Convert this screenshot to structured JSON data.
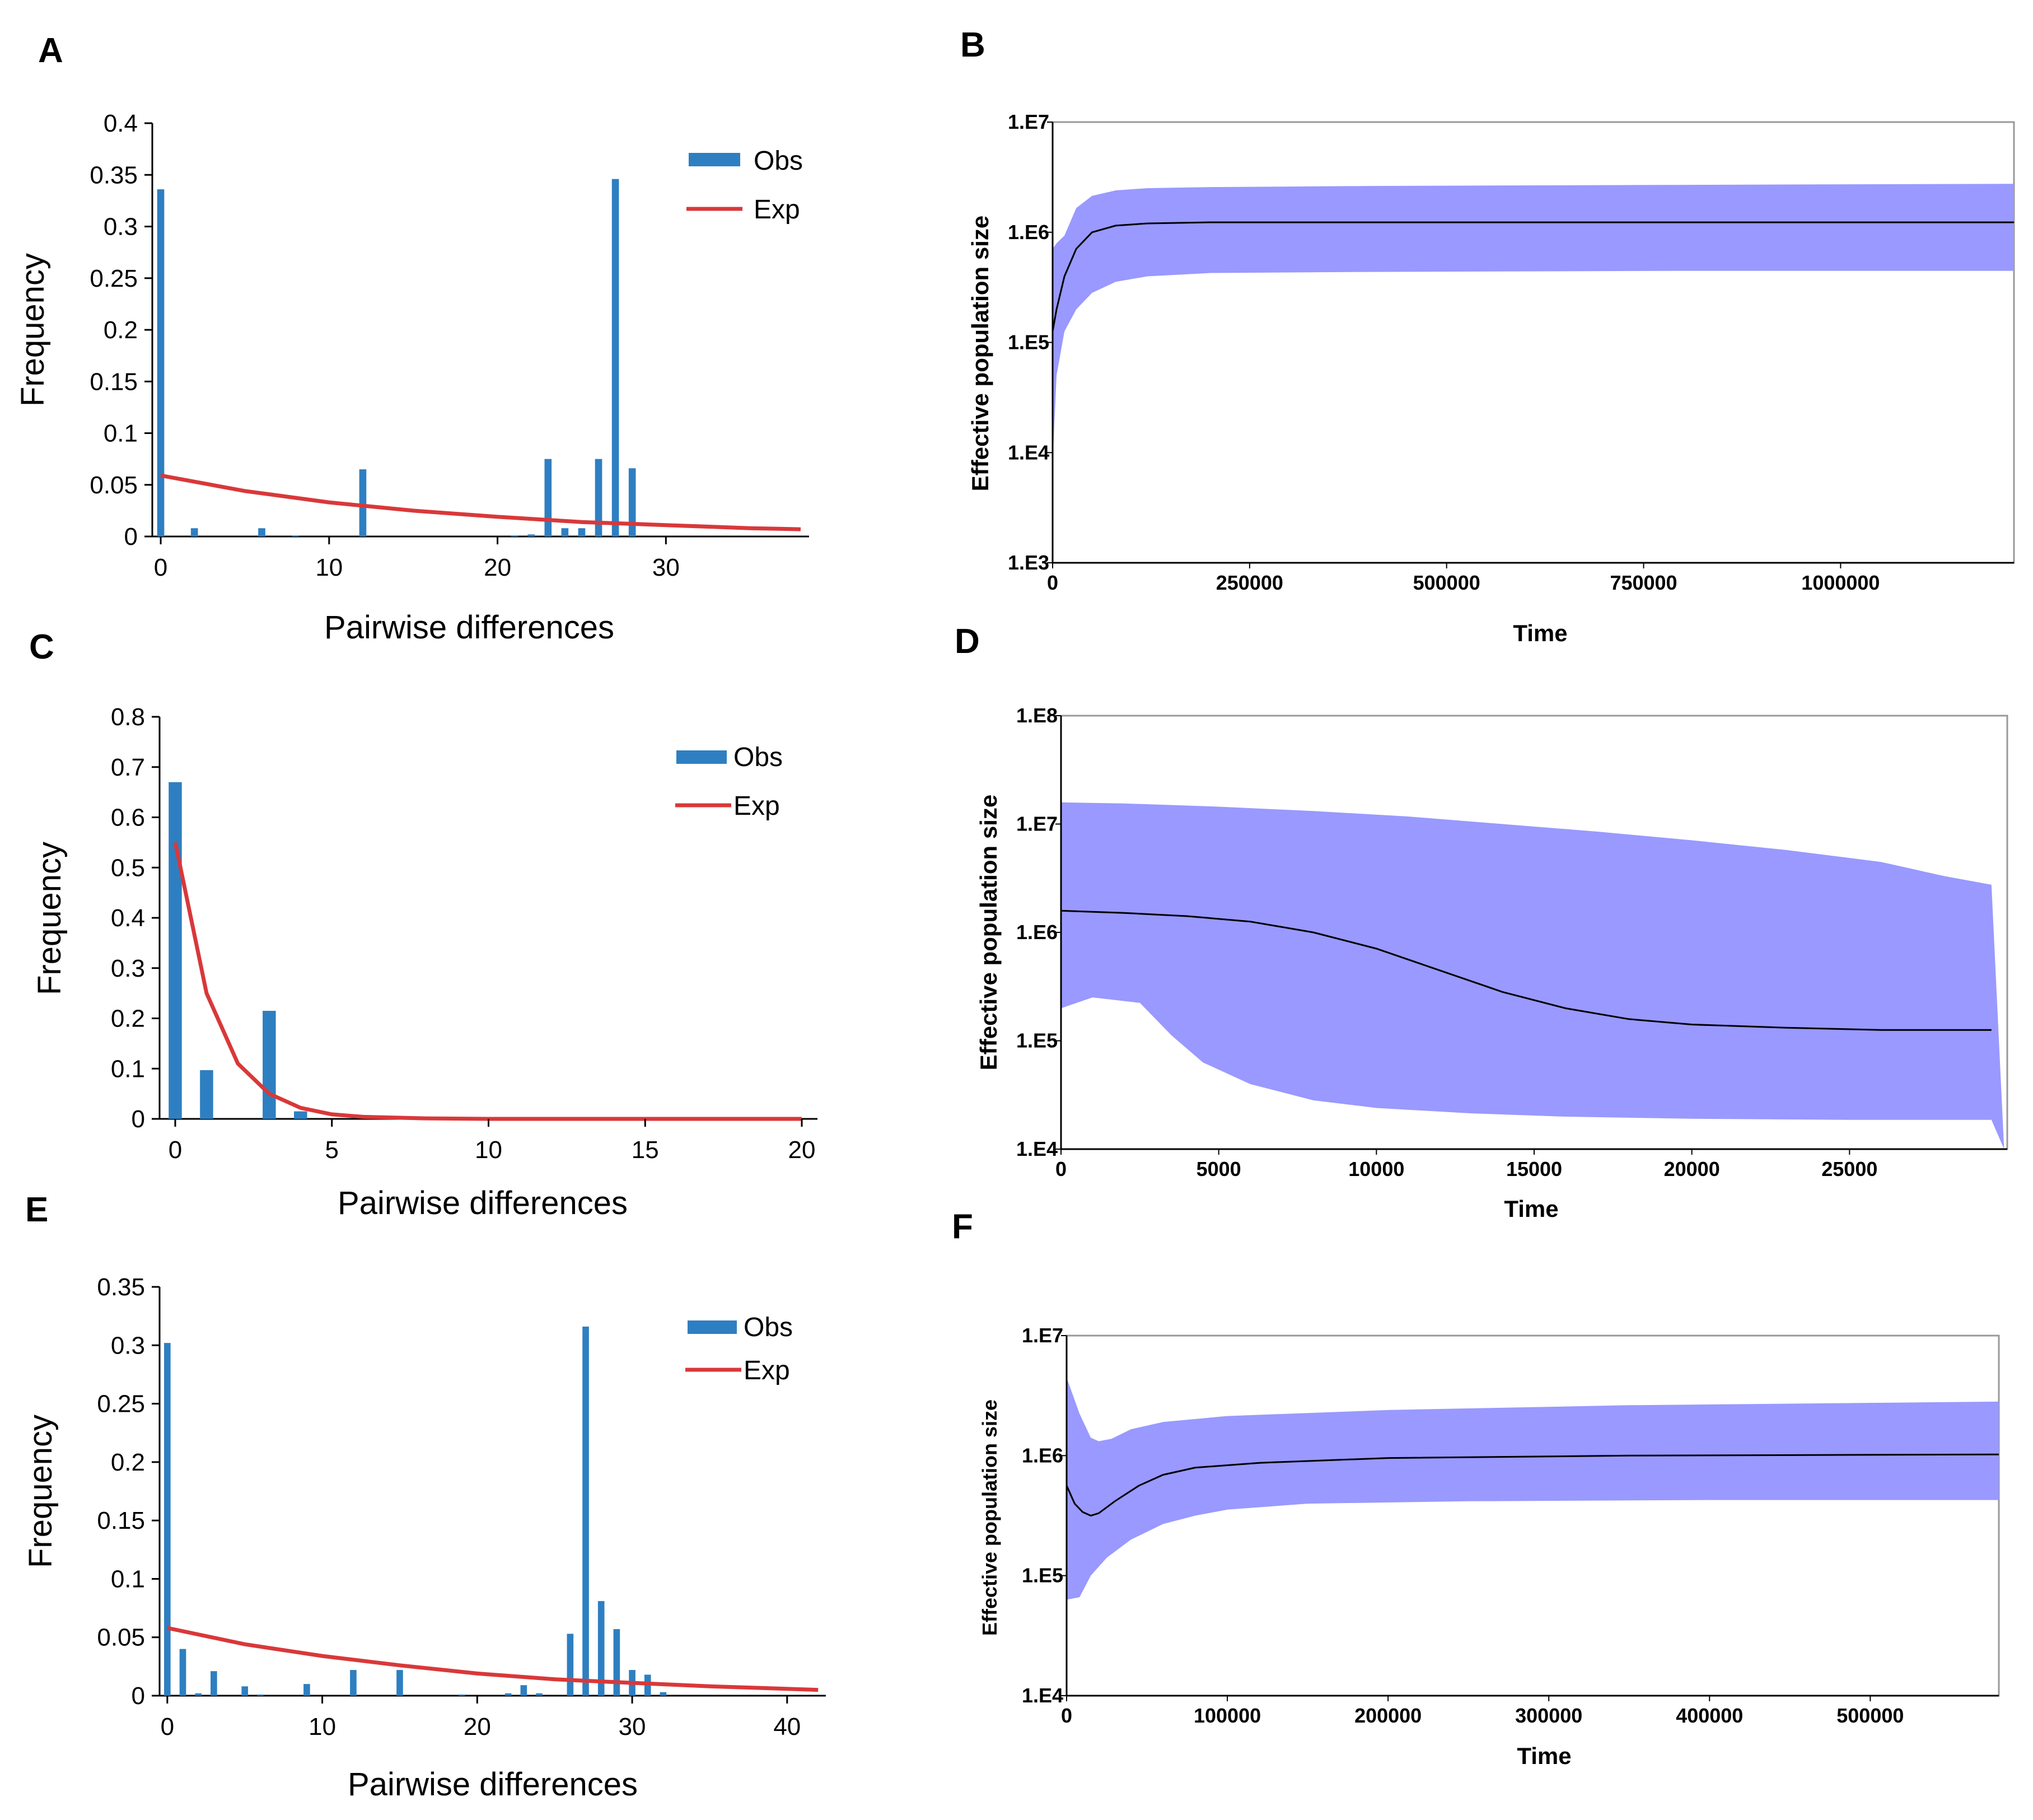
{
  "figure": {
    "panel_letters": [
      "A",
      "B",
      "C",
      "D",
      "E",
      "F"
    ],
    "colors": {
      "obs_bar": "#2e7fc1",
      "exp_line": "#d9383a",
      "band": "#9999ff",
      "median_line": "#000000",
      "axis": "#000000",
      "frame": "#999999"
    }
  },
  "chart_data": [
    {
      "panel": "A",
      "type": "bar",
      "title": "",
      "xlabel": "Pairwise differences",
      "ylabel": "Frequency",
      "xlim": [
        -0.5,
        38.5
      ],
      "ylim": [
        0,
        0.4
      ],
      "xticks": [
        "0",
        "10",
        "20",
        "30"
      ],
      "xtick_values": [
        0,
        10,
        20,
        30
      ],
      "yticks": [
        "0",
        "0.05",
        "0.1",
        "0.15",
        "0.2",
        "0.25",
        "0.3",
        "0.35",
        "0.4"
      ],
      "ytick_values": [
        0,
        0.05,
        0.1,
        0.15,
        0.2,
        0.25,
        0.3,
        0.35,
        0.4
      ],
      "legend": [
        "Obs",
        "Exp"
      ],
      "legend_position": "top-right",
      "series": [
        {
          "name": "Obs",
          "type": "bar",
          "x": [
            0,
            2,
            6,
            8,
            12,
            21,
            22,
            23,
            24,
            25,
            26,
            27,
            28
          ],
          "values": [
            0.336,
            0.008,
            0.008,
            0.001,
            0.065,
            0.001,
            0.002,
            0.075,
            0.008,
            0.008,
            0.075,
            0.346,
            0.066
          ]
        },
        {
          "name": "Exp",
          "type": "line",
          "x": [
            0,
            5,
            10,
            15,
            20,
            25,
            30,
            35,
            38
          ],
          "values": [
            0.059,
            0.044,
            0.033,
            0.025,
            0.019,
            0.014,
            0.011,
            0.008,
            0.007
          ]
        }
      ]
    },
    {
      "panel": "B",
      "type": "area",
      "title": "",
      "xlabel": "Time",
      "ylabel": "Effective population size",
      "xlim": [
        0,
        1220000
      ],
      "ylim_log10": [
        3,
        7
      ],
      "xticks": [
        "0",
        "250000",
        "500000",
        "750000",
        "1000000"
      ],
      "xtick_values": [
        0,
        250000,
        500000,
        750000,
        1000000
      ],
      "yticks": [
        "1.E3",
        "1.E4",
        "1.E5",
        "1.E6",
        "1.E7"
      ],
      "ytick_values_log10": [
        3,
        4,
        5,
        6,
        7
      ],
      "series": [
        {
          "name": "median",
          "x": [
            0,
            5000,
            15000,
            30000,
            50000,
            80000,
            120000,
            200000,
            400000,
            800000,
            1220000
          ],
          "log10_values": [
            5.1,
            5.3,
            5.6,
            5.85,
            6.0,
            6.06,
            6.08,
            6.09,
            6.09,
            6.09,
            6.09
          ]
        },
        {
          "name": "upper",
          "x": [
            0,
            5000,
            15000,
            30000,
            50000,
            80000,
            120000,
            200000,
            400000,
            800000,
            1220000
          ],
          "log10_values": [
            5.85,
            5.9,
            5.97,
            6.22,
            6.33,
            6.38,
            6.4,
            6.41,
            6.42,
            6.43,
            6.44
          ]
        },
        {
          "name": "lower",
          "x": [
            0,
            5000,
            15000,
            30000,
            50000,
            80000,
            120000,
            200000,
            400000,
            800000,
            1220000
          ],
          "log10_values": [
            3.9,
            4.7,
            5.1,
            5.3,
            5.45,
            5.55,
            5.6,
            5.63,
            5.64,
            5.65,
            5.65
          ]
        }
      ]
    },
    {
      "panel": "C",
      "type": "bar",
      "title": "",
      "xlabel": "Pairwise differences",
      "ylabel": "Frequency",
      "xlim": [
        -0.5,
        20.5
      ],
      "ylim": [
        0,
        0.8
      ],
      "xticks": [
        "0",
        "5",
        "10",
        "15",
        "20"
      ],
      "xtick_values": [
        0,
        5,
        10,
        15,
        20
      ],
      "yticks": [
        "0",
        "0.1",
        "0.2",
        "0.3",
        "0.4",
        "0.5",
        "0.6",
        "0.7",
        "0.8"
      ],
      "ytick_values": [
        0,
        0.1,
        0.2,
        0.3,
        0.4,
        0.5,
        0.6,
        0.7,
        0.8
      ],
      "legend": [
        "Obs",
        "Exp"
      ],
      "legend_position": "top-right",
      "series": [
        {
          "name": "Obs",
          "type": "bar",
          "x": [
            0,
            1,
            3,
            4
          ],
          "values": [
            0.67,
            0.097,
            0.215,
            0.015
          ]
        },
        {
          "name": "Exp",
          "type": "line",
          "x": [
            0,
            1,
            2,
            3,
            4,
            5,
            6,
            8,
            10,
            15,
            20
          ],
          "values": [
            0.55,
            0.25,
            0.11,
            0.05,
            0.022,
            0.009,
            0.004,
            0.001,
            0.0,
            0.0,
            0.0
          ]
        }
      ]
    },
    {
      "panel": "D",
      "type": "area",
      "title": "",
      "xlabel": "Time",
      "ylabel": "Effective population size",
      "xlim": [
        0,
        30000
      ],
      "ylim_log10": [
        4,
        8
      ],
      "xticks": [
        "0",
        "5000",
        "10000",
        "15000",
        "20000",
        "25000"
      ],
      "xtick_values": [
        0,
        5000,
        10000,
        15000,
        20000,
        25000
      ],
      "yticks": [
        "1.E4",
        "1.E5",
        "1.E6",
        "1.E7",
        "1.E8"
      ],
      "ytick_values_log10": [
        4,
        5,
        6,
        7,
        8
      ],
      "series": [
        {
          "name": "median",
          "x": [
            0,
            2000,
            4000,
            6000,
            8000,
            10000,
            12000,
            14000,
            16000,
            18000,
            20000,
            23000,
            26000,
            29500
          ],
          "log10_values": [
            6.2,
            6.18,
            6.15,
            6.1,
            6.0,
            5.85,
            5.65,
            5.45,
            5.3,
            5.2,
            5.15,
            5.12,
            5.1,
            5.1
          ]
        },
        {
          "name": "upper",
          "x": [
            0,
            2000,
            5000,
            8000,
            11000,
            14000,
            17000,
            20000,
            23000,
            26000,
            28000,
            29500,
            29900
          ],
          "log10_values": [
            7.2,
            7.19,
            7.16,
            7.12,
            7.07,
            7.0,
            6.93,
            6.85,
            6.76,
            6.65,
            6.52,
            6.44,
            4.0
          ]
        },
        {
          "name": "lower",
          "x": [
            0,
            1000,
            2500,
            3500,
            4500,
            6000,
            8000,
            10000,
            13000,
            16000,
            20000,
            25000,
            29500
          ],
          "log10_values": [
            5.3,
            5.4,
            5.35,
            5.05,
            4.8,
            4.6,
            4.45,
            4.38,
            4.33,
            4.3,
            4.28,
            4.27,
            4.27
          ]
        }
      ]
    },
    {
      "panel": "E",
      "type": "bar",
      "title": "",
      "xlabel": "Pairwise differences",
      "ylabel": "Frequency",
      "xlim": [
        -0.5,
        42.5
      ],
      "ylim": [
        0,
        0.35
      ],
      "xticks": [
        "0",
        "10",
        "20",
        "30",
        "40"
      ],
      "xtick_values": [
        0,
        10,
        20,
        30,
        40
      ],
      "yticks": [
        "0",
        "0.05",
        "0.1",
        "0.15",
        "0.2",
        "0.25",
        "0.3",
        "0.35"
      ],
      "ytick_values": [
        0,
        0.05,
        0.1,
        0.15,
        0.2,
        0.25,
        0.3,
        0.35
      ],
      "legend": [
        "Obs",
        "Exp"
      ],
      "legend_position": "top-right",
      "series": [
        {
          "name": "Obs",
          "type": "bar",
          "x": [
            0,
            1,
            2,
            3,
            5,
            6,
            9,
            12,
            15,
            19,
            22,
            23,
            24,
            26,
            27,
            28,
            29,
            30,
            31,
            32
          ],
          "values": [
            0.302,
            0.04,
            0.002,
            0.021,
            0.008,
            0.001,
            0.01,
            0.022,
            0.022,
            0.001,
            0.002,
            0.009,
            0.002,
            0.053,
            0.316,
            0.081,
            0.057,
            0.022,
            0.018,
            0.003
          ]
        },
        {
          "name": "Exp",
          "type": "line",
          "x": [
            0,
            5,
            10,
            15,
            20,
            25,
            30,
            35,
            42
          ],
          "values": [
            0.058,
            0.044,
            0.034,
            0.026,
            0.019,
            0.014,
            0.011,
            0.008,
            0.005
          ]
        }
      ]
    },
    {
      "panel": "F",
      "type": "area",
      "title": "",
      "xlabel": "Time",
      "ylabel": "Effective population size",
      "xlim": [
        0,
        580000
      ],
      "ylim_log10": [
        4,
        7
      ],
      "xticks": [
        "0",
        "100000",
        "200000",
        "300000",
        "400000",
        "500000"
      ],
      "xtick_values": [
        0,
        100000,
        200000,
        300000,
        400000,
        500000
      ],
      "yticks": [
        "1.E4",
        "1.E5",
        "1.E6",
        "1.E7"
      ],
      "ytick_values_log10": [
        4,
        5,
        6,
        7
      ],
      "series": [
        {
          "name": "median",
          "x": [
            0,
            5000,
            10000,
            15000,
            20000,
            30000,
            45000,
            60000,
            80000,
            120000,
            200000,
            350000,
            580000
          ],
          "log10_values": [
            5.75,
            5.6,
            5.53,
            5.5,
            5.52,
            5.62,
            5.75,
            5.84,
            5.9,
            5.94,
            5.98,
            6.0,
            6.01
          ]
        },
        {
          "name": "upper",
          "x": [
            0,
            8000,
            15000,
            20000,
            28000,
            40000,
            60000,
            100000,
            200000,
            350000,
            580000
          ],
          "log10_values": [
            6.65,
            6.35,
            6.15,
            6.12,
            6.14,
            6.22,
            6.28,
            6.33,
            6.38,
            6.42,
            6.45
          ]
        },
        {
          "name": "lower",
          "x": [
            0,
            8000,
            15000,
            25000,
            40000,
            60000,
            80000,
            100000,
            150000,
            250000,
            400000,
            580000
          ],
          "log10_values": [
            4.8,
            4.82,
            5.0,
            5.15,
            5.3,
            5.43,
            5.5,
            5.55,
            5.6,
            5.62,
            5.63,
            5.63
          ]
        }
      ]
    }
  ]
}
